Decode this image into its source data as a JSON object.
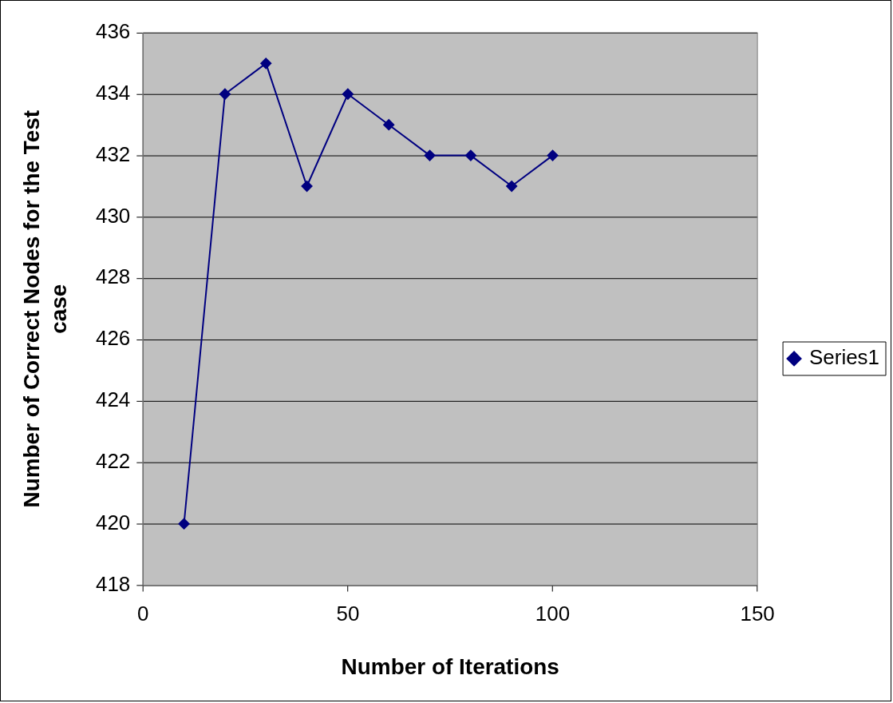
{
  "chart_data": {
    "type": "line",
    "xlabel": "Number of Iterations",
    "ylabel": "Number of Correct Nodes for the Test case",
    "x": [
      10,
      20,
      30,
      40,
      50,
      60,
      70,
      80,
      90,
      100
    ],
    "series": [
      {
        "name": "Series1",
        "color": "#000080",
        "values": [
          420,
          434,
          435,
          431,
          434,
          433,
          432,
          432,
          431,
          432
        ]
      }
    ],
    "xlim": [
      0,
      150
    ],
    "xticks": [
      0,
      50,
      100,
      150
    ],
    "ylim": [
      418,
      436
    ],
    "yticks": [
      418,
      420,
      422,
      424,
      426,
      428,
      430,
      432,
      434,
      436
    ],
    "grid": "y",
    "legend": "right",
    "marker": "diamond",
    "line_style": "solid"
  }
}
